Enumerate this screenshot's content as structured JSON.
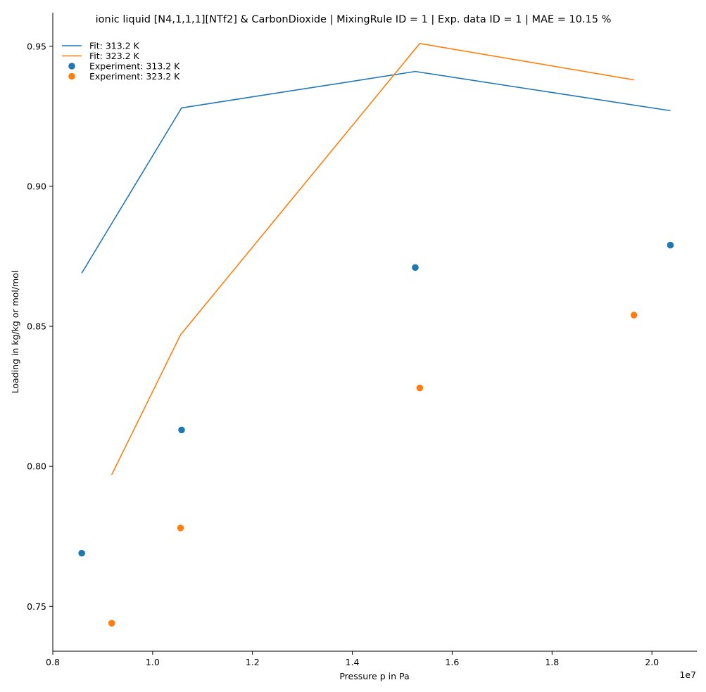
{
  "chart_data": {
    "type": "line",
    "title": "ionic liquid [N4,1,1,1][NTf2] & CarbonDioxide | MixingRule ID = 1 | Exp. data ID = 1 | MAE = 10.15 %",
    "xlabel": "Pressure p in Pa",
    "ylabel": "Loading in kg/kg or mol/mol",
    "x_offset_label": "1e7",
    "xlim": [
      0.8,
      2.09
    ],
    "ylim": [
      0.734,
      0.962
    ],
    "x_ticks": [
      0.8,
      1.0,
      1.2,
      1.4,
      1.6,
      1.8,
      2.0
    ],
    "x_tick_labels": [
      "0.8",
      "1.0",
      "1.2",
      "1.4",
      "1.6",
      "1.8",
      "2.0"
    ],
    "y_ticks": [
      0.75,
      0.8,
      0.85,
      0.9,
      0.95
    ],
    "y_tick_labels": [
      "0.75",
      "0.80",
      "0.85",
      "0.90",
      "0.95"
    ],
    "grid": false,
    "legend_position": "top-left",
    "series": [
      {
        "name": "Fit: 313.2 K",
        "kind": "line",
        "color": "#1f77b4",
        "x": [
          0.858,
          1.058,
          1.526,
          2.037
        ],
        "y": [
          0.869,
          0.928,
          0.941,
          0.927
        ]
      },
      {
        "name": "Fit: 323.2 K",
        "kind": "line",
        "color": "#ff7f0e",
        "x": [
          0.918,
          1.056,
          1.535,
          1.964
        ],
        "y": [
          0.797,
          0.847,
          0.951,
          0.938
        ]
      },
      {
        "name": "Experiment: 313.2 K",
        "kind": "scatter",
        "color": "#1f77b4",
        "x": [
          0.858,
          1.058,
          1.526,
          2.037
        ],
        "y": [
          0.769,
          0.813,
          0.871,
          0.879
        ]
      },
      {
        "name": "Experiment: 323.2 K",
        "kind": "scatter",
        "color": "#ff7f0e",
        "x": [
          0.918,
          1.056,
          1.535,
          1.964
        ],
        "y": [
          0.744,
          0.778,
          0.828,
          0.854
        ]
      }
    ]
  }
}
